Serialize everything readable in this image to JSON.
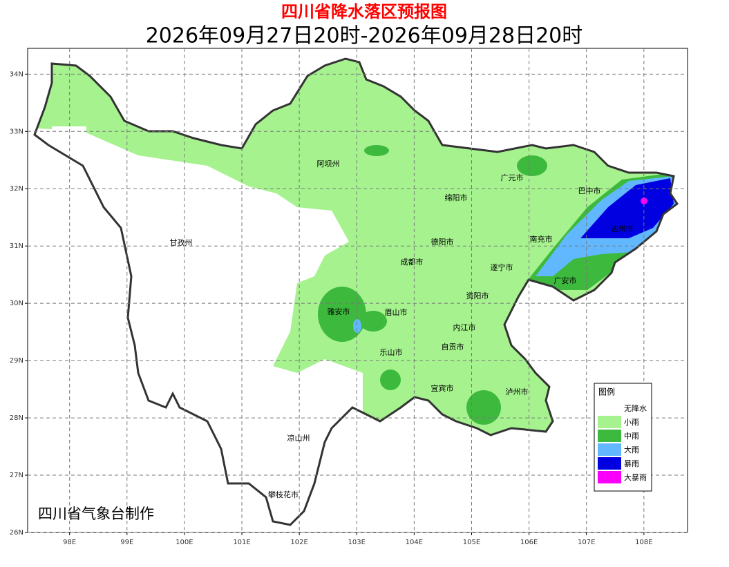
{
  "title": "四川省降水落区预报图",
  "subtitle": "2026年09月27日20时-2026年09月28日20时",
  "credit": "四川省气象台制作",
  "axes": {
    "xlim": [
      97.27,
      108.76
    ],
    "ylim": [
      26,
      34.45
    ],
    "xticks": [
      {
        "value": 98,
        "label": "98E"
      },
      {
        "value": 99,
        "label": "99E"
      },
      {
        "value": 100,
        "label": "100E"
      },
      {
        "value": 101,
        "label": "101E"
      },
      {
        "value": 102,
        "label": "102E"
      },
      {
        "value": 103,
        "label": "103E"
      },
      {
        "value": 104,
        "label": "104E"
      },
      {
        "value": 105,
        "label": "105E"
      },
      {
        "value": 106,
        "label": "106E"
      },
      {
        "value": 107,
        "label": "107E"
      },
      {
        "value": 108,
        "label": "108E"
      }
    ],
    "yticks": [
      {
        "value": 26,
        "label": "26N"
      },
      {
        "value": 27,
        "label": "27N"
      },
      {
        "value": 28,
        "label": "28N"
      },
      {
        "value": 29,
        "label": "29N"
      },
      {
        "value": 30,
        "label": "30N"
      },
      {
        "value": 31,
        "label": "31N"
      },
      {
        "value": 32,
        "label": "32N"
      },
      {
        "value": 33,
        "label": "33N"
      },
      {
        "value": 34,
        "label": "34N"
      }
    ],
    "grid": true
  },
  "cities": [
    "阿坝州",
    "甘孜州",
    "广元市",
    "巴中市",
    "绵阳市",
    "德阳市",
    "南充市",
    "达州市",
    "成都市",
    "遂宁市",
    "广安市",
    "雅安市",
    "眉山市",
    "资阳市",
    "内江市",
    "乐山市",
    "自贡市",
    "宜宾市",
    "泸州市",
    "凉山州",
    "攀枝花市"
  ],
  "legend": {
    "title": "图例",
    "items": [
      {
        "label": "无降水",
        "color": "#ffffff"
      },
      {
        "label": "小雨",
        "color": "#a6f28f"
      },
      {
        "label": "中雨",
        "color": "#3dba3d"
      },
      {
        "label": "大雨",
        "color": "#61b8ff"
      },
      {
        "label": "暴雨",
        "color": "#0000e1"
      },
      {
        "label": "大暴雨",
        "color": "#fa00fa"
      }
    ]
  }
}
